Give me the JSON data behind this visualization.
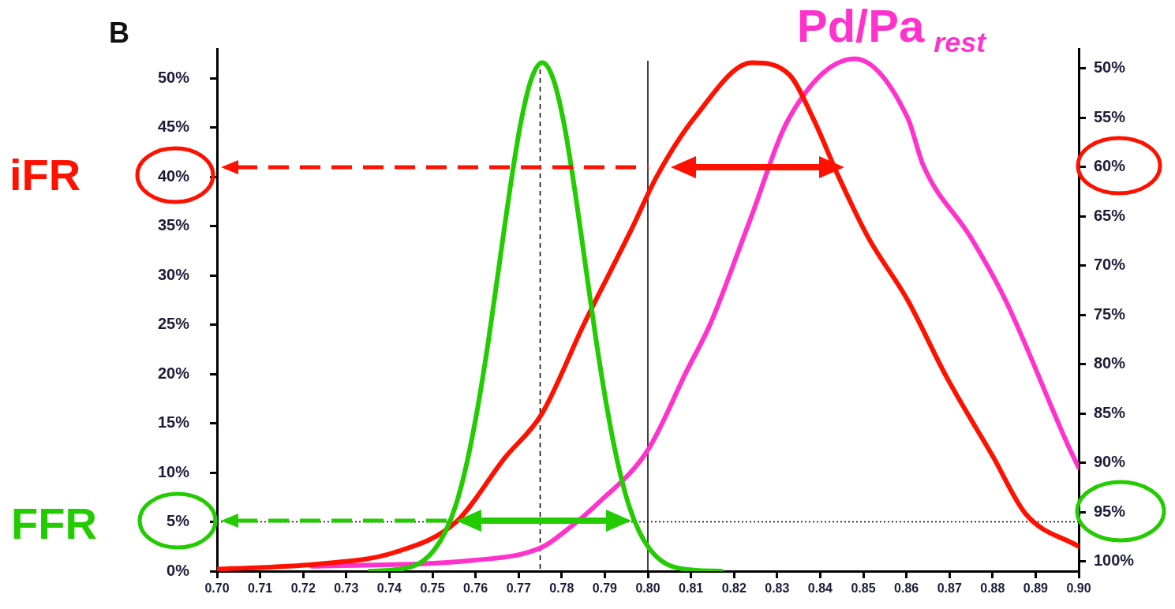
{
  "chart_data": {
    "type": "line",
    "annotations": [
      "B"
    ],
    "xlim": [
      0.7,
      0.9
    ],
    "xticks": [
      {
        "value": 0.7,
        "label": "0.70"
      },
      {
        "value": 0.71,
        "label": "0.71"
      },
      {
        "value": 0.72,
        "label": "0.72"
      },
      {
        "value": 0.73,
        "label": "0.73"
      },
      {
        "value": 0.74,
        "label": "0.74"
      },
      {
        "value": 0.75,
        "label": "0.75"
      },
      {
        "value": 0.76,
        "label": "0.76"
      },
      {
        "value": 0.77,
        "label": "0.77"
      },
      {
        "value": 0.78,
        "label": "0.78"
      },
      {
        "value": 0.79,
        "label": "0.79"
      },
      {
        "value": 0.8,
        "label": "0.80"
      },
      {
        "value": 0.81,
        "label": "0.81"
      },
      {
        "value": 0.82,
        "label": "0.82"
      },
      {
        "value": 0.83,
        "label": "0.83"
      },
      {
        "value": 0.84,
        "label": "0.84"
      },
      {
        "value": 0.85,
        "label": "0.85"
      },
      {
        "value": 0.86,
        "label": "0.86"
      },
      {
        "value": 0.87,
        "label": "0.87"
      },
      {
        "value": 0.88,
        "label": "0.88"
      },
      {
        "value": 0.89,
        "label": "0.89"
      },
      {
        "value": 0.9,
        "label": "0.90"
      }
    ],
    "ylim": [
      0,
      53
    ],
    "yticks": [
      {
        "value": 0,
        "label": "0%"
      },
      {
        "value": 5,
        "label": "5%"
      },
      {
        "value": 10,
        "label": "10%"
      },
      {
        "value": 15,
        "label": "15%"
      },
      {
        "value": 20,
        "label": "20%"
      },
      {
        "value": 25,
        "label": "25%"
      },
      {
        "value": 30,
        "label": "30%"
      },
      {
        "value": 35,
        "label": "35%"
      },
      {
        "value": 40,
        "label": "40%"
      },
      {
        "value": 45,
        "label": "45%"
      },
      {
        "value": 50,
        "label": "50%"
      }
    ],
    "y2lim": [
      101,
      48
    ],
    "y2ticks": [
      {
        "value": 50,
        "label": "50%"
      },
      {
        "value": 55,
        "label": "55%"
      },
      {
        "value": 60,
        "label": "60%"
      },
      {
        "value": 65,
        "label": "65%"
      },
      {
        "value": 70,
        "label": "70%"
      },
      {
        "value": 75,
        "label": "75%"
      },
      {
        "value": 80,
        "label": "80%"
      },
      {
        "value": 85,
        "label": "85%"
      },
      {
        "value": 90,
        "label": "90%"
      },
      {
        "value": 95,
        "label": "95%"
      },
      {
        "value": 100,
        "label": "100%"
      }
    ],
    "grid": false,
    "legend": "left",
    "marker": "none",
    "ref_lines": [
      {
        "axis": "x",
        "value": 0.775,
        "color": "#000000",
        "line_style": "dashed"
      },
      {
        "axis": "x",
        "value": 0.8,
        "color": "#000000",
        "line_style": "solid"
      },
      {
        "axis": "y",
        "value": 5,
        "color": "#000000",
        "line_style": "dotted"
      }
    ],
    "series": [
      {
        "name": "FFR",
        "color": "#22cc00",
        "x": [
          0.7355,
          0.7405,
          0.7455,
          0.748,
          0.7505,
          0.753,
          0.7555,
          0.758,
          0.7605,
          0.763,
          0.7655,
          0.768,
          0.7705,
          0.773,
          0.7755,
          0.778,
          0.7805,
          0.783,
          0.7855,
          0.788,
          0.7905,
          0.793,
          0.7955,
          0.798,
          0.8005,
          0.803,
          0.8055,
          0.8105,
          0.817
        ],
        "values": [
          0,
          0.1,
          0.5,
          1.1,
          2.2,
          4.0,
          6.8,
          11.0,
          16.6,
          23.4,
          31.1,
          38.8,
          45.5,
          50.0,
          51.6,
          50.0,
          45.5,
          38.8,
          31.1,
          23.4,
          16.6,
          11.0,
          6.8,
          4.0,
          2.2,
          1.1,
          0.5,
          0.1,
          0
        ]
      },
      {
        "name": "iFR",
        "color": "#ff1100",
        "x": [
          0.7,
          0.7229,
          0.7412,
          0.7555,
          0.7668,
          0.7753,
          0.7852,
          0.7962,
          0.802,
          0.8108,
          0.8242,
          0.8328,
          0.8383,
          0.8443,
          0.8511,
          0.8603,
          0.8692,
          0.88,
          0.8877,
          0.9
        ],
        "values": [
          0.2,
          0.7,
          1.9,
          5.0,
          11.5,
          15.9,
          25.1,
          34.7,
          40.0,
          46.0,
          51.6,
          50.4,
          46.0,
          40.0,
          33.9,
          27.5,
          19.8,
          11.7,
          5.8,
          2.5
        ]
      },
      {
        "name": "Pd/Pa$_{rest}$",
        "color": "#ff33cc",
        "x": [
          0.722,
          0.7595,
          0.7753,
          0.7815,
          0.7877,
          0.8,
          0.809,
          0.8145,
          0.8236,
          0.8328,
          0.848,
          0.8603,
          0.8639,
          0.8749,
          0.883,
          0.8978,
          0.9
        ],
        "values": [
          0.5,
          1.1,
          2.4,
          4.3,
          6.6,
          12.3,
          20.3,
          25.1,
          35.5,
          46.0,
          52.0,
          46.0,
          41.2,
          33.9,
          27.5,
          12.5,
          10.5
        ]
      }
    ]
  }
}
